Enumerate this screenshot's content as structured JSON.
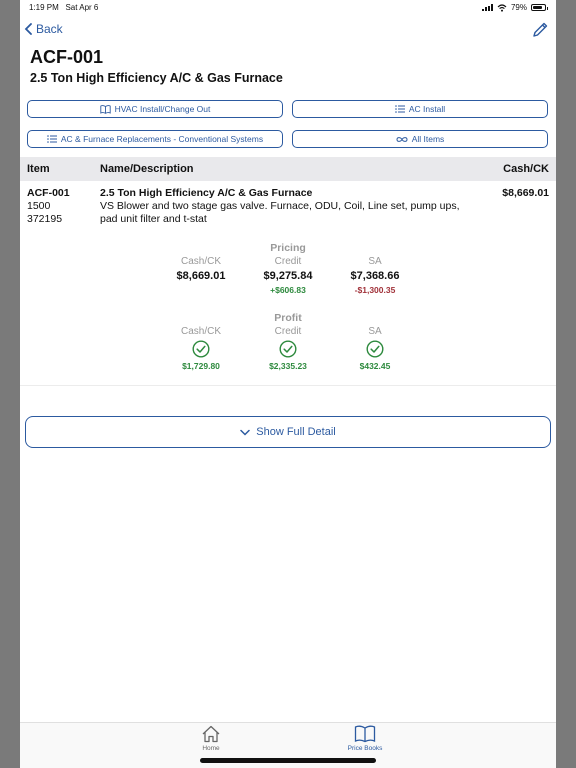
{
  "status": {
    "time": "1:19 PM",
    "date": "Sat Apr 6",
    "battery": "79%"
  },
  "nav": {
    "back_label": "Back"
  },
  "item": {
    "code": "ACF-001",
    "title": "2.5 Ton High Efficiency A/C & Gas Furnace"
  },
  "categories": [
    {
      "label": "HVAC Install/Change Out",
      "icon": "book-icon"
    },
    {
      "label": "AC Install",
      "icon": "list-icon"
    },
    {
      "label": "AC & Furnace Replacements - Conventional Systems",
      "icon": "list-icon"
    },
    {
      "label": "All Items",
      "icon": "infinity-icon"
    }
  ],
  "table": {
    "headers": {
      "item": "Item",
      "name": "Name/Description",
      "price": "Cash/CK"
    },
    "row": {
      "code": "ACF-001",
      "qty": "1500",
      "id": "372195",
      "name": "2.5 Ton High Efficiency A/C & Gas Furnace",
      "description_line1": "VS Blower and two stage gas valve. Furnace, ODU, Coil, Line set, pump ups,",
      "description_line2": "pad unit filter and t-stat",
      "price": "$8,669.01"
    }
  },
  "pricing": {
    "title": "Pricing",
    "cash": {
      "label": "Cash/CK",
      "value": "$8,669.01"
    },
    "credit": {
      "label": "Credit",
      "value": "$9,275.84",
      "delta": "+$606.83"
    },
    "sa": {
      "label": "SA",
      "value": "$7,368.66",
      "delta": "-$1,300.35"
    }
  },
  "profit": {
    "title": "Profit",
    "cash": {
      "label": "Cash/CK",
      "value": "$1,729.80"
    },
    "credit": {
      "label": "Credit",
      "value": "$2,335.23"
    },
    "sa": {
      "label": "SA",
      "value": "$432.45"
    }
  },
  "actions": {
    "show_full_detail": "Show Full Detail"
  },
  "tabbar": {
    "home": "Home",
    "price_books": "Price Books"
  },
  "colors": {
    "accent": "#2c5aa0",
    "positive": "#2e8a3e",
    "negative": "#a1323a"
  }
}
